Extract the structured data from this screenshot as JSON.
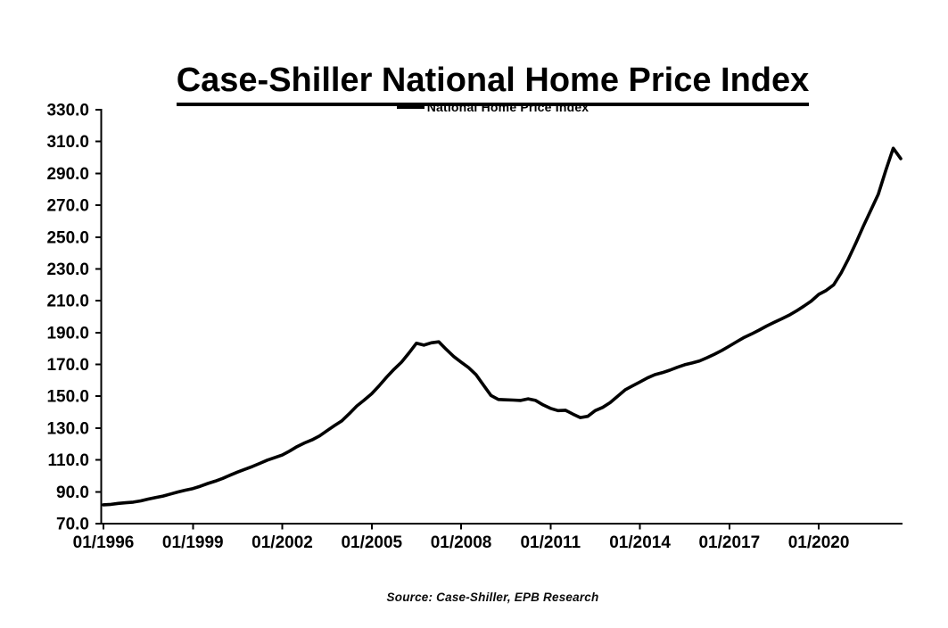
{
  "header": {
    "title": "Case-Shiller National Home Price Index"
  },
  "legend": {
    "label": "National Home Price Index",
    "marker": "line-marker",
    "line_color": "#000000"
  },
  "footer": {
    "source_note": "Source: Case-Shiller, EPB Research"
  },
  "colors": {
    "line": "#000000",
    "axis": "#000000",
    "text": "#000000",
    "background": "#ffffff"
  },
  "chart_data": {
    "type": "line",
    "title": "Case-Shiller National Home Price Index",
    "xlabel": "",
    "ylabel": "",
    "ylim": [
      70,
      330
    ],
    "y_tick_step": 20,
    "grid": false,
    "legend_position": "top-center",
    "y_tick_labels": [
      "70.0",
      "90.0",
      "110.0",
      "130.0",
      "150.0",
      "170.0",
      "190.0",
      "210.0",
      "230.0",
      "250.0",
      "270.0",
      "290.0",
      "310.0",
      "330.0"
    ],
    "x_tick_labels": [
      "01/1996",
      "01/1999",
      "01/2002",
      "01/2005",
      "01/2008",
      "01/2011",
      "01/2014",
      "01/2017",
      "01/2020"
    ],
    "series": [
      {
        "name": "National Home Price Index",
        "color": "#000000",
        "x": [
          "01/1996",
          "04/1996",
          "07/1996",
          "10/1996",
          "01/1997",
          "04/1997",
          "07/1997",
          "10/1997",
          "01/1998",
          "04/1998",
          "07/1998",
          "10/1998",
          "01/1999",
          "04/1999",
          "07/1999",
          "10/1999",
          "01/2000",
          "04/2000",
          "07/2000",
          "10/2000",
          "01/2001",
          "04/2001",
          "07/2001",
          "10/2001",
          "01/2002",
          "04/2002",
          "07/2002",
          "10/2002",
          "01/2003",
          "04/2003",
          "07/2003",
          "10/2003",
          "01/2004",
          "04/2004",
          "07/2004",
          "10/2004",
          "01/2005",
          "04/2005",
          "07/2005",
          "10/2005",
          "01/2006",
          "04/2006",
          "07/2006",
          "10/2006",
          "01/2007",
          "04/2007",
          "07/2007",
          "10/2007",
          "01/2008",
          "04/2008",
          "07/2008",
          "10/2008",
          "01/2009",
          "04/2009",
          "07/2009",
          "10/2009",
          "01/2010",
          "04/2010",
          "07/2010",
          "10/2010",
          "01/2011",
          "04/2011",
          "07/2011",
          "10/2011",
          "01/2012",
          "04/2012",
          "07/2012",
          "10/2012",
          "01/2013",
          "04/2013",
          "07/2013",
          "10/2013",
          "01/2014",
          "04/2014",
          "07/2014",
          "10/2014",
          "01/2015",
          "04/2015",
          "07/2015",
          "10/2015",
          "01/2016",
          "04/2016",
          "07/2016",
          "10/2016",
          "01/2017",
          "04/2017",
          "07/2017",
          "10/2017",
          "01/2018",
          "04/2018",
          "07/2018",
          "10/2018",
          "01/2019",
          "04/2019",
          "07/2019",
          "10/2019",
          "01/2020",
          "04/2020",
          "07/2020",
          "10/2020",
          "01/2021",
          "04/2021",
          "07/2021",
          "10/2021",
          "01/2022",
          "04/2022",
          "07/2022",
          "10/2022"
        ],
        "values": [
          81.8,
          82.1,
          82.7,
          83.1,
          83.5,
          84.3,
          85.4,
          86.4,
          87.3,
          88.6,
          89.9,
          91.0,
          92.0,
          93.5,
          95.2,
          96.7,
          98.4,
          100.4,
          102.4,
          104.1,
          105.9,
          107.9,
          109.9,
          111.5,
          113.1,
          115.6,
          118.4,
          120.7,
          122.6,
          125.1,
          128.4,
          131.6,
          134.6,
          139.1,
          143.9,
          147.6,
          151.6,
          156.6,
          162.0,
          167.0,
          171.4,
          177.2,
          183.3,
          182.1,
          183.6,
          184.2,
          179.5,
          175.0,
          171.5,
          168.0,
          163.5,
          157.0,
          150.5,
          148.0,
          147.8,
          147.6,
          147.4,
          148.4,
          147.4,
          144.6,
          142.4,
          141.0,
          141.2,
          138.8,
          136.6,
          137.4,
          141.0,
          143.0,
          146.0,
          150.0,
          154.0,
          156.5,
          159.0,
          161.5,
          163.6,
          164.8,
          166.4,
          168.2,
          169.8,
          170.9,
          172.2,
          174.2,
          176.4,
          178.8,
          181.5,
          184.3,
          187.0,
          189.2,
          191.6,
          194.1,
          196.4,
          198.6,
          200.9,
          203.6,
          206.6,
          209.8,
          214.0,
          216.5,
          220.0,
          227.5,
          236.5,
          246.5,
          257.0,
          267.0,
          277.0,
          292.0,
          305.8,
          299.3
        ]
      }
    ]
  }
}
